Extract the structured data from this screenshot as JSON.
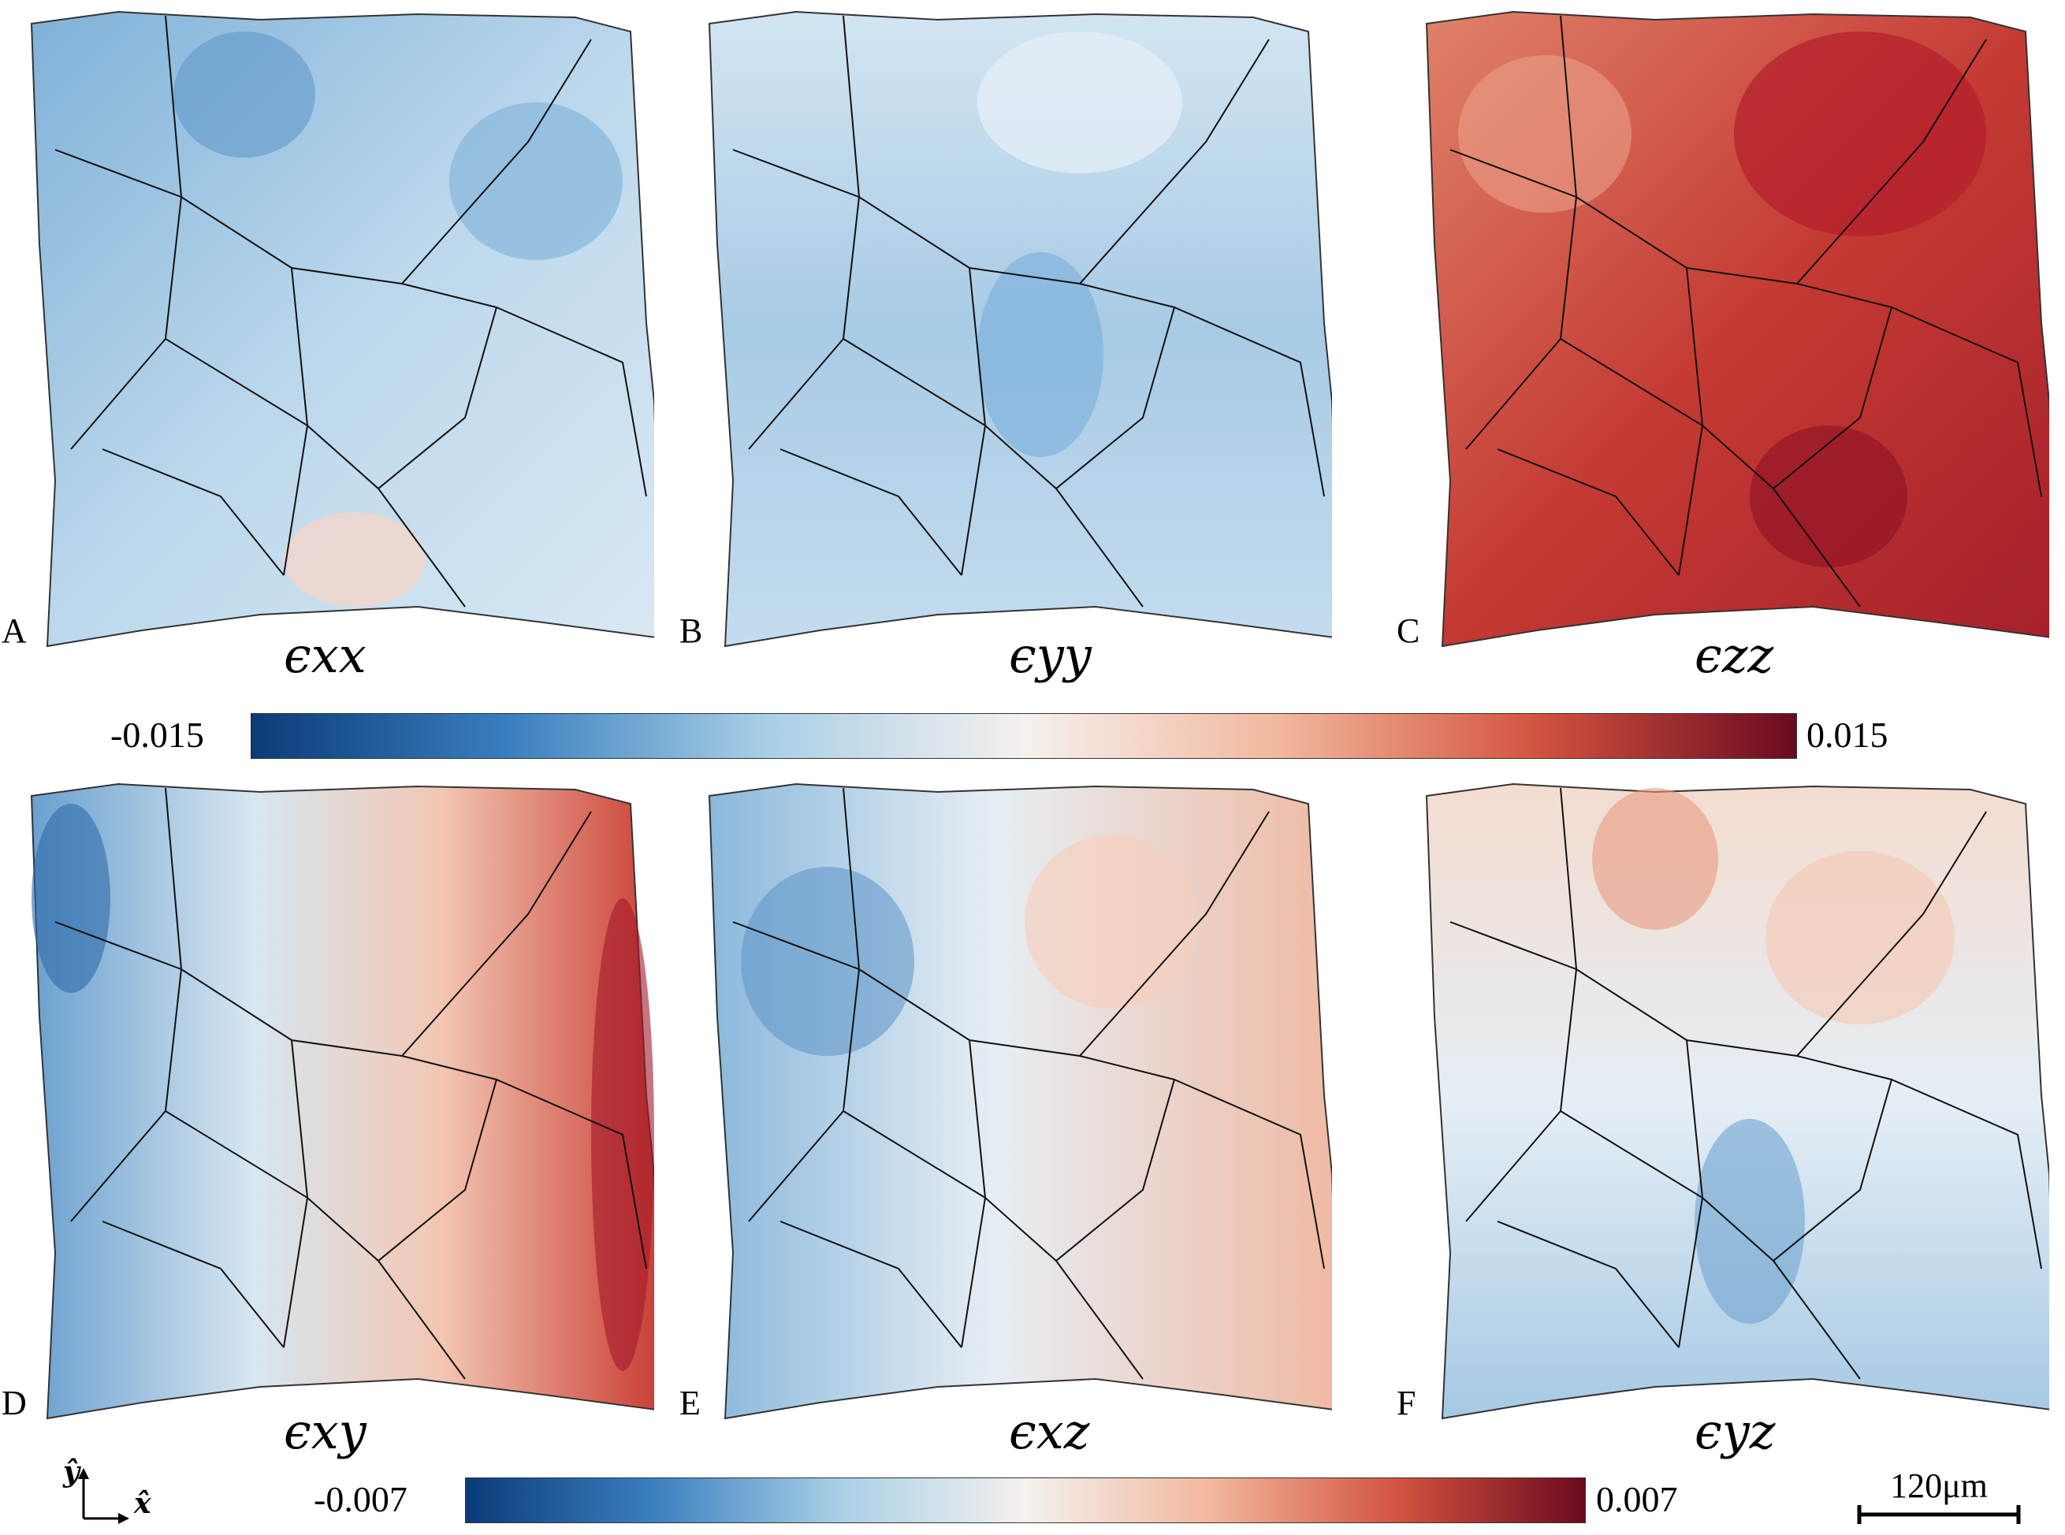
{
  "panels_top": [
    {
      "letter": "A",
      "symbol": "ϵxx"
    },
    {
      "letter": "B",
      "symbol": "ϵyy"
    },
    {
      "letter": "C",
      "symbol": "ϵzz"
    }
  ],
  "panels_bottom": [
    {
      "letter": "D",
      "symbol": "ϵxy"
    },
    {
      "letter": "E",
      "symbol": "ϵxz"
    },
    {
      "letter": "F",
      "symbol": "ϵyz"
    }
  ],
  "colorbar_top": {
    "min_label": "-0.015",
    "max_label": "0.015",
    "min": -0.015,
    "max": 0.015
  },
  "colorbar_bottom": {
    "min_label": "-0.007",
    "max_label": "0.007",
    "min": -0.007,
    "max": 0.007
  },
  "colormap": [
    "#0b3b78",
    "#3a7fbf",
    "#a9cfe6",
    "#f4f1ee",
    "#f2b79c",
    "#d2533f",
    "#6b0a1f"
  ],
  "axis_indicator": {
    "y_label": "ŷ",
    "x_label": "x̂"
  },
  "scale_bar": {
    "label": "120μm"
  }
}
